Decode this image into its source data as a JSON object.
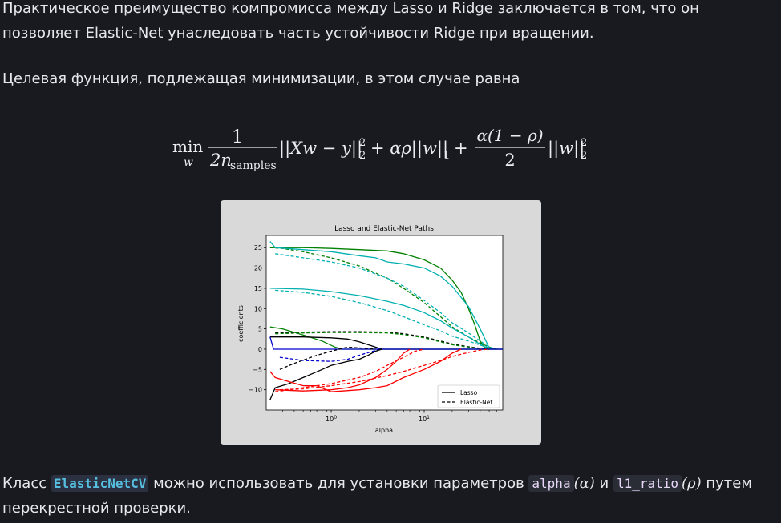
{
  "text": {
    "p1": "Практическое преимущество компромисса между Lasso и Ridge заключается в том, что он позволяет Elastic-Net унаследовать часть устойчивости Ridge при вращении.",
    "p2": "Целевая функция, подлежащая минимизации, в этом случае равна",
    "p3_before": "Класс ",
    "p3_link": "ElasticNetCV",
    "p3_mid1": " можно использовать для установки параметров ",
    "p3_code1": "alpha",
    "p3_math1": "(α)",
    "p3_mid2": " и ",
    "p3_code2": "l1_ratio",
    "p3_math2": "(ρ)",
    "p3_after": " путем перекрестной проверки."
  },
  "formula": {
    "min": "min",
    "min_sub": "w",
    "frac1_num": "1",
    "frac1_den": "2n",
    "frac1_den_sub": "samples",
    "term1": "||Xw − y||",
    "term1_sub": "2",
    "term1_sup": "2",
    "term2": "+ αρ||w||",
    "term2_sub": "1",
    "plus": "+",
    "frac2_num": "α(1 − ρ)",
    "frac2_den": "2",
    "term3": "||w||",
    "term3_sub": "2",
    "term3_sup": "2"
  },
  "chart_data": {
    "type": "line",
    "title": "Lasso and Elastic-Net Paths",
    "xlabel": "alpha",
    "ylabel": "coefficients",
    "x_scale": "log",
    "xlim": [
      0.2,
      70
    ],
    "ylim": [
      -15,
      28
    ],
    "x_ticks": [
      "10^0",
      "10^1"
    ],
    "y_ticks": [
      25,
      20,
      15,
      10,
      5,
      0,
      -5,
      -10
    ],
    "legend": {
      "placement": "lower-right",
      "entries": [
        {
          "label": "Lasso",
          "style": "solid"
        },
        {
          "label": "Elastic-Net",
          "style": "dashed"
        }
      ]
    },
    "series": [
      {
        "color": "#008000",
        "style": "solid",
        "points": [
          [
            0.22,
            25
          ],
          [
            0.5,
            25
          ],
          [
            1,
            24.8
          ],
          [
            2,
            24.5
          ],
          [
            4,
            24.2
          ],
          [
            6,
            23.5
          ],
          [
            10,
            22
          ],
          [
            15,
            20
          ],
          [
            20,
            17
          ],
          [
            25,
            14
          ],
          [
            30,
            10
          ],
          [
            35,
            6
          ],
          [
            40,
            2
          ],
          [
            45,
            0.3
          ],
          [
            50,
            0
          ]
        ]
      },
      {
        "color": "#008000",
        "style": "dashed",
        "points": [
          [
            0.22,
            25
          ],
          [
            0.3,
            24.8
          ],
          [
            0.5,
            24
          ],
          [
            1,
            22.5
          ],
          [
            2,
            20.5
          ],
          [
            4,
            17.5
          ],
          [
            6,
            15
          ],
          [
            10,
            11.5
          ],
          [
            15,
            8
          ],
          [
            20,
            5.5
          ],
          [
            30,
            3
          ],
          [
            40,
            1.5
          ],
          [
            50,
            0.5
          ],
          [
            60,
            0
          ]
        ]
      },
      {
        "color": "#00b0b0",
        "style": "solid",
        "points": [
          [
            0.22,
            26.5
          ],
          [
            0.25,
            25
          ],
          [
            0.5,
            24.5
          ],
          [
            1,
            24
          ],
          [
            2,
            23
          ],
          [
            3,
            22.5
          ],
          [
            4,
            21.5
          ],
          [
            6,
            21
          ],
          [
            10,
            20
          ],
          [
            15,
            18
          ],
          [
            20,
            15.5
          ],
          [
            30,
            10.5
          ],
          [
            40,
            5
          ],
          [
            50,
            0.3
          ],
          [
            55,
            0
          ]
        ]
      },
      {
        "color": "#00b0b0",
        "style": "dashed",
        "points": [
          [
            0.25,
            23.5
          ],
          [
            0.5,
            22.5
          ],
          [
            1,
            21.5
          ],
          [
            2,
            20
          ],
          [
            4,
            17.5
          ],
          [
            6,
            15.5
          ],
          [
            10,
            12
          ],
          [
            15,
            9
          ],
          [
            20,
            6.5
          ],
          [
            30,
            4
          ],
          [
            40,
            2
          ],
          [
            50,
            0.5
          ],
          [
            60,
            0
          ]
        ]
      },
      {
        "color": "#00b0b0",
        "style": "solid",
        "points": [
          [
            0.22,
            15
          ],
          [
            0.5,
            14.8
          ],
          [
            1,
            14.2
          ],
          [
            2,
            13.2
          ],
          [
            4,
            11.8
          ],
          [
            6,
            10.8
          ],
          [
            10,
            9
          ],
          [
            15,
            7
          ],
          [
            20,
            5.2
          ],
          [
            30,
            3
          ],
          [
            40,
            1.2
          ],
          [
            50,
            0
          ]
        ]
      },
      {
        "color": "#00b0b0",
        "style": "dashed",
        "points": [
          [
            0.25,
            14.5
          ],
          [
            0.5,
            14
          ],
          [
            1,
            13
          ],
          [
            2,
            11.5
          ],
          [
            4,
            9.5
          ],
          [
            6,
            8
          ],
          [
            10,
            6
          ],
          [
            15,
            4.5
          ],
          [
            20,
            3.2
          ],
          [
            30,
            2
          ],
          [
            40,
            1
          ],
          [
            50,
            0.3
          ],
          [
            60,
            0
          ]
        ]
      },
      {
        "color": "#008000",
        "style": "solid",
        "points": [
          [
            0.22,
            5.5
          ],
          [
            0.3,
            5
          ],
          [
            0.5,
            3.5
          ],
          [
            0.8,
            2
          ],
          [
            1.1,
            0.5
          ],
          [
            1.3,
            0
          ],
          [
            70,
            0
          ]
        ]
      },
      {
        "color": "#000000",
        "style": "dashed",
        "points": [
          [
            0.25,
            4
          ],
          [
            0.5,
            4.2
          ],
          [
            1,
            4.3
          ],
          [
            2,
            4.3
          ],
          [
            4,
            4.2
          ],
          [
            6,
            3.8
          ],
          [
            10,
            3
          ],
          [
            15,
            2
          ],
          [
            20,
            1.3
          ],
          [
            30,
            0.6
          ],
          [
            40,
            0.2
          ],
          [
            50,
            0
          ]
        ]
      },
      {
        "color": "#008000",
        "style": "dashed",
        "points": [
          [
            0.25,
            3.8
          ],
          [
            0.5,
            4
          ],
          [
            1,
            4.1
          ],
          [
            2,
            4.1
          ],
          [
            4,
            4
          ],
          [
            6,
            3.6
          ],
          [
            10,
            2.8
          ],
          [
            15,
            1.8
          ],
          [
            20,
            1.1
          ],
          [
            30,
            0.5
          ],
          [
            40,
            0.1
          ],
          [
            50,
            0
          ]
        ]
      },
      {
        "color": "#000000",
        "style": "solid",
        "points": [
          [
            0.22,
            3
          ],
          [
            0.5,
            3
          ],
          [
            1,
            2.8
          ],
          [
            1.5,
            2.5
          ],
          [
            2,
            1.8
          ],
          [
            3,
            0.5
          ],
          [
            3.5,
            0
          ],
          [
            70,
            0
          ]
        ]
      },
      {
        "color": "#0000d0",
        "style": "solid",
        "points": [
          [
            0.22,
            3
          ],
          [
            0.24,
            0
          ],
          [
            70,
            0
          ]
        ]
      },
      {
        "color": "#000000",
        "style": "dashed",
        "points": [
          [
            0.28,
            -5
          ],
          [
            0.4,
            -3.5
          ],
          [
            0.7,
            -1.5
          ],
          [
            1,
            -0.5
          ],
          [
            1.5,
            0.5
          ],
          [
            2,
            0.3
          ],
          [
            3,
            0
          ]
        ]
      },
      {
        "color": "#0000d0",
        "style": "dashed",
        "points": [
          [
            0.28,
            -2
          ],
          [
            0.5,
            -2.8
          ],
          [
            1,
            -3
          ],
          [
            1.5,
            -2.5
          ],
          [
            2,
            -1.5
          ],
          [
            3,
            -0.3
          ],
          [
            3.5,
            0
          ]
        ]
      },
      {
        "color": "#000000",
        "style": "solid",
        "points": [
          [
            0.22,
            -12.5
          ],
          [
            0.25,
            -9.5
          ],
          [
            0.35,
            -8.5
          ],
          [
            0.5,
            -7
          ],
          [
            0.8,
            -5
          ],
          [
            1,
            -4
          ],
          [
            1.5,
            -3
          ],
          [
            2,
            -2.5
          ],
          [
            2.5,
            -1.5
          ],
          [
            3,
            -0.5
          ],
          [
            3.5,
            0
          ]
        ]
      },
      {
        "color": "#ff0000",
        "style": "solid",
        "points": [
          [
            0.22,
            -5.5
          ],
          [
            0.25,
            -7
          ],
          [
            0.35,
            -8
          ],
          [
            0.5,
            -9
          ],
          [
            0.7,
            -9
          ],
          [
            1,
            -10.5
          ],
          [
            2,
            -10
          ],
          [
            3,
            -9.5
          ],
          [
            4,
            -9
          ],
          [
            6,
            -7
          ],
          [
            10,
            -5
          ],
          [
            15,
            -3
          ],
          [
            20,
            -1
          ],
          [
            25,
            0
          ]
        ]
      },
      {
        "color": "#ff0000",
        "style": "solid",
        "points": [
          [
            0.25,
            -10
          ],
          [
            0.5,
            -10.3
          ],
          [
            1,
            -10
          ],
          [
            1.5,
            -9.5
          ],
          [
            2,
            -8.8
          ],
          [
            3,
            -7
          ],
          [
            4,
            -5
          ],
          [
            5,
            -3
          ],
          [
            6,
            -1
          ],
          [
            7,
            0
          ]
        ]
      },
      {
        "color": "#ff0000",
        "style": "dashed",
        "points": [
          [
            0.25,
            -10.5
          ],
          [
            0.5,
            -9.5
          ],
          [
            1,
            -8.5
          ],
          [
            2,
            -7
          ],
          [
            3,
            -5.5
          ],
          [
            4,
            -4
          ],
          [
            6,
            -2
          ],
          [
            8,
            -0.5
          ],
          [
            10,
            0
          ]
        ]
      },
      {
        "color": "#ff0000",
        "style": "dashed",
        "points": [
          [
            0.28,
            -10
          ],
          [
            0.5,
            -9.8
          ],
          [
            1,
            -9
          ],
          [
            2,
            -8
          ],
          [
            4,
            -6.5
          ],
          [
            6,
            -5.5
          ],
          [
            10,
            -4
          ],
          [
            15,
            -2.8
          ],
          [
            20,
            -1.8
          ],
          [
            30,
            -0.8
          ],
          [
            40,
            -0.2
          ],
          [
            50,
            0
          ]
        ]
      }
    ]
  }
}
